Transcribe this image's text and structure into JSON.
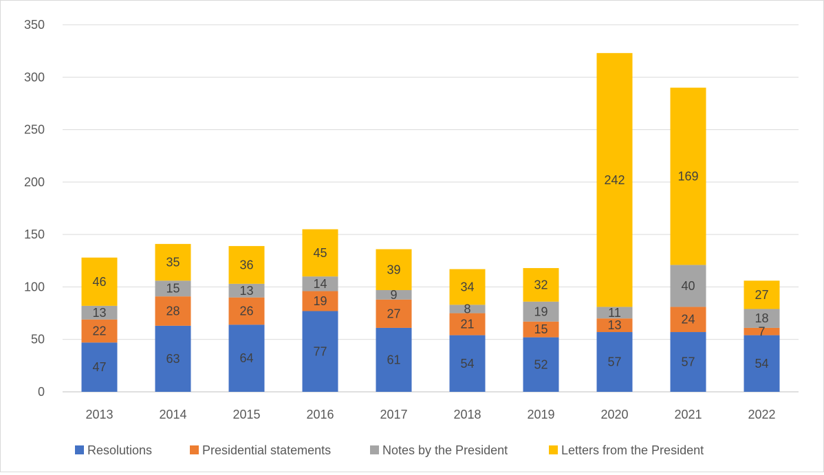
{
  "chart_data": {
    "type": "bar",
    "stacked": true,
    "title": "",
    "xlabel": "",
    "ylabel": "",
    "categories": [
      "2013",
      "2014",
      "2015",
      "2016",
      "2017",
      "2018",
      "2019",
      "2020",
      "2021",
      "2022"
    ],
    "ylim": [
      0,
      350
    ],
    "yticks": [
      "0",
      "50",
      "100",
      "150",
      "200",
      "250",
      "300",
      "350"
    ],
    "grid": true,
    "legend_position": "bottom",
    "series": [
      {
        "name": "Resolutions",
        "color": "#4472c4",
        "values": [
          47,
          63,
          64,
          77,
          61,
          54,
          52,
          57,
          57,
          54
        ]
      },
      {
        "name": "Presidential statements",
        "color": "#ed7d31",
        "values": [
          22,
          28,
          26,
          19,
          27,
          21,
          15,
          13,
          24,
          7
        ]
      },
      {
        "name": "Notes by the President",
        "color": "#a5a5a5",
        "values": [
          13,
          15,
          13,
          14,
          9,
          8,
          19,
          11,
          40,
          18
        ]
      },
      {
        "name": "Letters from the President",
        "color": "#ffc000",
        "values": [
          46,
          35,
          36,
          45,
          39,
          34,
          32,
          242,
          169,
          27
        ]
      }
    ]
  }
}
